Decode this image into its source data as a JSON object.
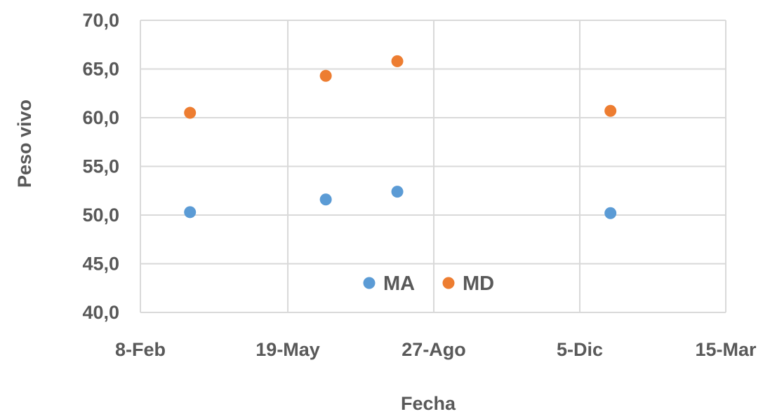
{
  "chart_data": {
    "type": "scatter",
    "title": "",
    "xlabel": "Fecha",
    "ylabel": "Peso vivo",
    "x_axis": {
      "ticks": [
        {
          "date": "2016-02-08",
          "label": "8-Feb"
        },
        {
          "date": "2016-05-19",
          "label": "19-May"
        },
        {
          "date": "2016-08-27",
          "label": "27-Ago"
        },
        {
          "date": "2016-12-05",
          "label": "5-Dic"
        },
        {
          "date": "2017-03-15",
          "label": "15-Mar"
        }
      ],
      "range": [
        "2016-02-08",
        "2017-03-15"
      ]
    },
    "y_axis": {
      "ticks": [
        {
          "value": 40,
          "label": "40,0"
        },
        {
          "value": 45,
          "label": "45,0"
        },
        {
          "value": 50,
          "label": "50,0"
        },
        {
          "value": 55,
          "label": "55,0"
        },
        {
          "value": 60,
          "label": "60,0"
        },
        {
          "value": 65,
          "label": "65,0"
        },
        {
          "value": 70,
          "label": "70,0"
        }
      ],
      "range": [
        40,
        70
      ]
    },
    "grid": true,
    "legend_position": "bottom-center-inside",
    "series": [
      {
        "name": "MA",
        "color": "#5B9BD5",
        "points": [
          {
            "x": "2016-03-13",
            "y": 50.3
          },
          {
            "x": "2016-06-14",
            "y": 51.6
          },
          {
            "x": "2016-08-02",
            "y": 52.4
          },
          {
            "x": "2016-12-26",
            "y": 50.2
          }
        ]
      },
      {
        "name": "MD",
        "color": "#ED7D31",
        "points": [
          {
            "x": "2016-03-13",
            "y": 60.5
          },
          {
            "x": "2016-06-14",
            "y": 64.3
          },
          {
            "x": "2016-08-02",
            "y": 65.8
          },
          {
            "x": "2016-12-26",
            "y": 60.7
          }
        ]
      }
    ]
  }
}
